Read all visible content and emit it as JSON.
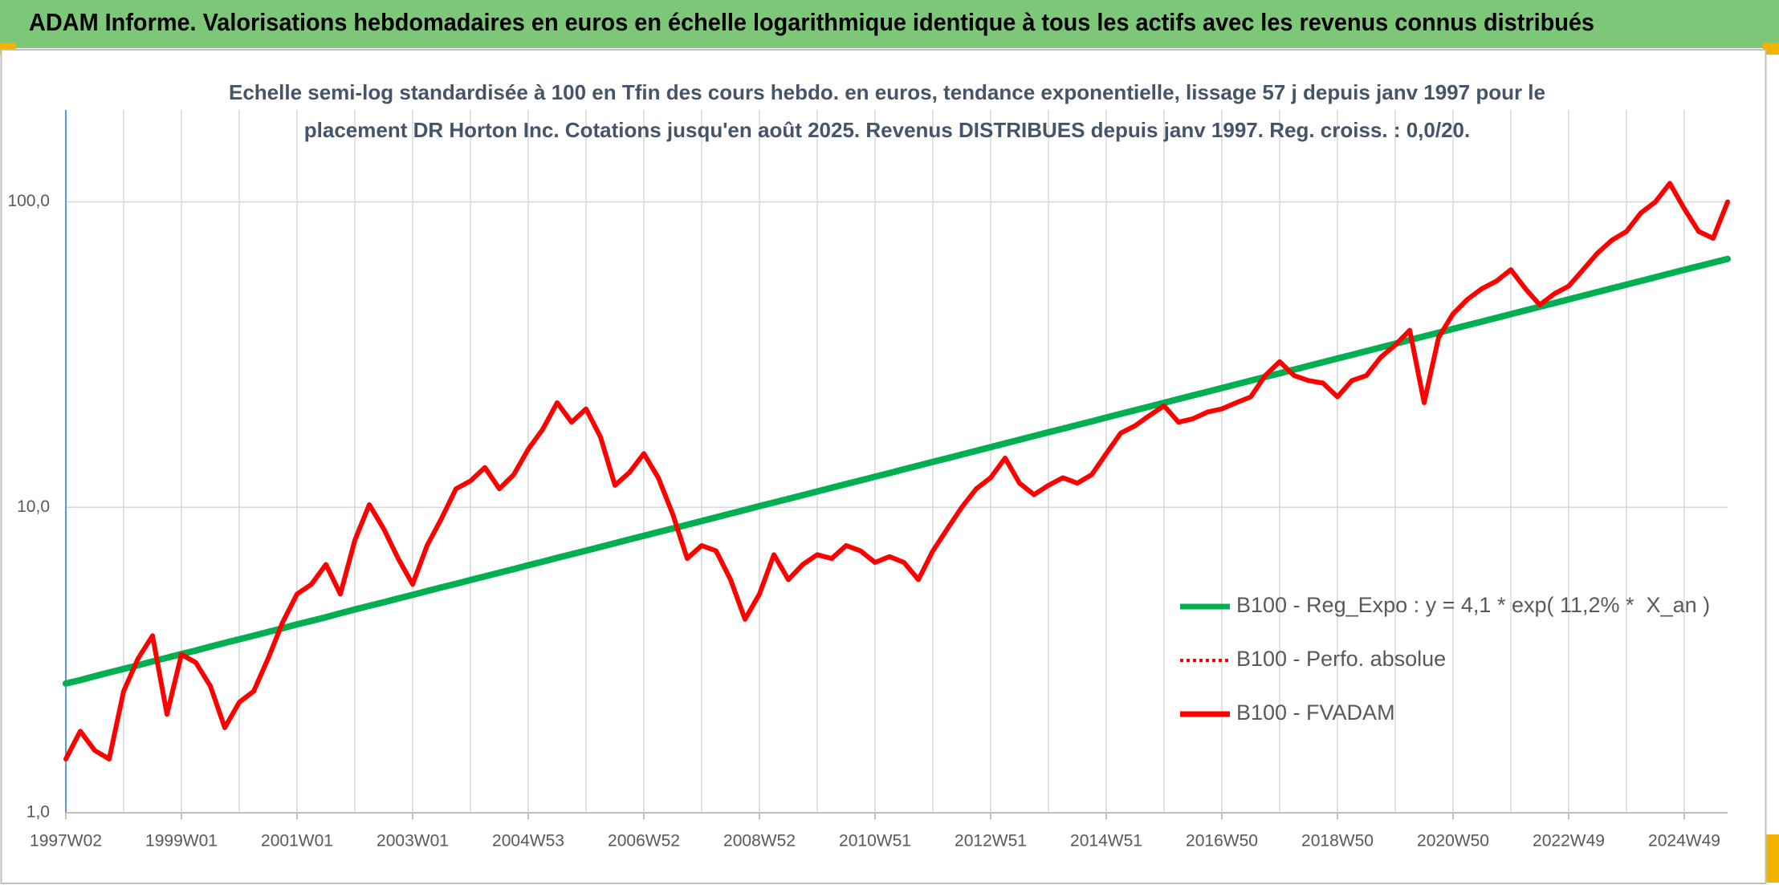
{
  "chart_data": {
    "type": "line",
    "title": "ADAM Informe. Valorisations hebdomadaires en euros en échelle logarithmique identique à tous les actifs avec les revenus connus distribués",
    "subtitle": "Echelle semi-log standardisée à 100 en Tfin des cours hebdo. en euros, tendance exponentielle, lissage 57 j depuis janv 1997 pour le placement DR Horton Inc. Cotations jusqu'en août 2025. Revenus DISTRIBUES depuis janv 1997. Reg. croiss. : 0,0/20.",
    "categories": [
      "1997W02",
      null,
      null,
      null,
      null,
      null,
      null,
      null,
      "1999W01",
      null,
      null,
      null,
      null,
      null,
      null,
      null,
      "2001W01",
      null,
      null,
      null,
      null,
      null,
      null,
      null,
      "2003W01",
      null,
      null,
      null,
      null,
      null,
      null,
      null,
      "2004W53",
      null,
      null,
      null,
      null,
      null,
      null,
      null,
      "2006W52",
      null,
      null,
      null,
      null,
      null,
      null,
      null,
      "2008W52",
      null,
      null,
      null,
      null,
      null,
      null,
      null,
      "2010W51",
      null,
      null,
      null,
      null,
      null,
      null,
      null,
      "2012W51",
      null,
      null,
      null,
      null,
      null,
      null,
      null,
      "2014W51",
      null,
      null,
      null,
      null,
      null,
      null,
      null,
      "2016W50",
      null,
      null,
      null,
      null,
      null,
      null,
      null,
      "2018W50",
      null,
      null,
      null,
      null,
      null,
      null,
      null,
      "2020W50",
      null,
      null,
      null,
      null,
      null,
      null,
      null,
      "2022W49",
      null,
      null,
      null,
      null,
      null,
      null,
      null,
      "2024W49",
      null,
      null,
      null
    ],
    "log_scale": true,
    "ylim": [
      1,
      200
    ],
    "yticks": [
      {
        "value": 1,
        "label": "1,0"
      },
      {
        "value": 10,
        "label": "10,0"
      },
      {
        "value": 100,
        "label": "100,0"
      }
    ],
    "grid": true,
    "legend": "lower right",
    "series": [
      {
        "name": "B100 - Reg_Expo : y = 4,1 * exp( 11,2% *  X_an )",
        "color": "#00b050",
        "style": "solid",
        "values": [
          2.65,
          2.72,
          2.8,
          2.88,
          2.96,
          3.04,
          3.13,
          3.22,
          3.31,
          3.4,
          3.5,
          3.6,
          3.7,
          3.8,
          3.91,
          4.02,
          4.14,
          4.25,
          4.37,
          4.5,
          4.63,
          4.76,
          4.89,
          5.03,
          5.17,
          5.32,
          5.47,
          5.62,
          5.78,
          5.94,
          6.11,
          6.28,
          6.46,
          6.64,
          6.83,
          7.02,
          7.22,
          7.42,
          7.63,
          7.85,
          8.07,
          8.3,
          8.53,
          8.77,
          9.02,
          9.27,
          9.54,
          9.81,
          10.09,
          10.37,
          10.66,
          10.96,
          11.27,
          11.59,
          11.92,
          12.25,
          12.6,
          12.95,
          13.32,
          13.7,
          14.09,
          14.48,
          14.89,
          15.31,
          15.75,
          16.19,
          16.65,
          17.12,
          17.6,
          18.1,
          18.61,
          19.13,
          19.68,
          20.23,
          20.8,
          21.39,
          21.99,
          22.61,
          23.25,
          23.91,
          24.58,
          25.27,
          25.99,
          26.72,
          27.48,
          28.25,
          29.05,
          29.87,
          30.72,
          31.58,
          32.47,
          33.39,
          34.33,
          35.3,
          36.3,
          37.32,
          38.38,
          39.46,
          40.57,
          41.72,
          42.9,
          44.11,
          45.35,
          46.63,
          47.95,
          49.3,
          50.69,
          52.12,
          53.6,
          55.11,
          56.66,
          58.26,
          59.92,
          61.6,
          63.3,
          65.0
        ]
      },
      {
        "name": "B100 - Perfo. absolue",
        "color": "#ff0000",
        "style": "dotted",
        "values": [
          1.5,
          1.85,
          1.6,
          1.5,
          2.5,
          3.2,
          3.8,
          2.1,
          3.3,
          3.1,
          2.6,
          1.9,
          2.3,
          2.5,
          3.2,
          4.2,
          5.2,
          5.6,
          6.5,
          5.2,
          7.8,
          10.2,
          8.5,
          6.8,
          5.6,
          7.5,
          9.2,
          11.5,
          12.2,
          13.5,
          11.5,
          12.8,
          15.5,
          18,
          22,
          19,
          21,
          17,
          11.8,
          13,
          15,
          12.5,
          9.5,
          6.8,
          7.5,
          7.2,
          5.8,
          4.3,
          5.2,
          7,
          5.8,
          6.5,
          7,
          6.8,
          7.5,
          7.2,
          6.6,
          6.9,
          6.6,
          5.8,
          7.2,
          8.5,
          10,
          11.5,
          12.5,
          14.5,
          12,
          11,
          11.8,
          12.5,
          12,
          12.8,
          15,
          17.5,
          18.5,
          20,
          21.5,
          19,
          19.5,
          20.5,
          21,
          22,
          23,
          27,
          30,
          27,
          26,
          25.5,
          23,
          26,
          27,
          31,
          34,
          38,
          22,
          36,
          43,
          48,
          52,
          55,
          60,
          52,
          46,
          50,
          53,
          60,
          68,
          75,
          80,
          92,
          100,
          115,
          95,
          80,
          76,
          100
        ]
      },
      {
        "name": "B100 - FVADAM",
        "color": "#ff0000",
        "style": "solid",
        "values": [
          1.5,
          1.85,
          1.6,
          1.5,
          2.5,
          3.2,
          3.8,
          2.1,
          3.3,
          3.1,
          2.6,
          1.9,
          2.3,
          2.5,
          3.2,
          4.2,
          5.2,
          5.6,
          6.5,
          5.2,
          7.8,
          10.2,
          8.5,
          6.8,
          5.6,
          7.5,
          9.2,
          11.5,
          12.2,
          13.5,
          11.5,
          12.8,
          15.5,
          18,
          22,
          19,
          21,
          17,
          11.8,
          13,
          15,
          12.5,
          9.5,
          6.8,
          7.5,
          7.2,
          5.8,
          4.3,
          5.2,
          7,
          5.8,
          6.5,
          7,
          6.8,
          7.5,
          7.2,
          6.6,
          6.9,
          6.6,
          5.8,
          7.2,
          8.5,
          10,
          11.5,
          12.5,
          14.5,
          12,
          11,
          11.8,
          12.5,
          12,
          12.8,
          15,
          17.5,
          18.5,
          20,
          21.5,
          19,
          19.5,
          20.5,
          21,
          22,
          23,
          27,
          30,
          27,
          26,
          25.5,
          23,
          26,
          27,
          31,
          34,
          38,
          22,
          36,
          43,
          48,
          52,
          55,
          60,
          52,
          46,
          50,
          53,
          60,
          68,
          75,
          80,
          92,
          100,
          115,
          95,
          80,
          76,
          100
        ]
      }
    ]
  }
}
